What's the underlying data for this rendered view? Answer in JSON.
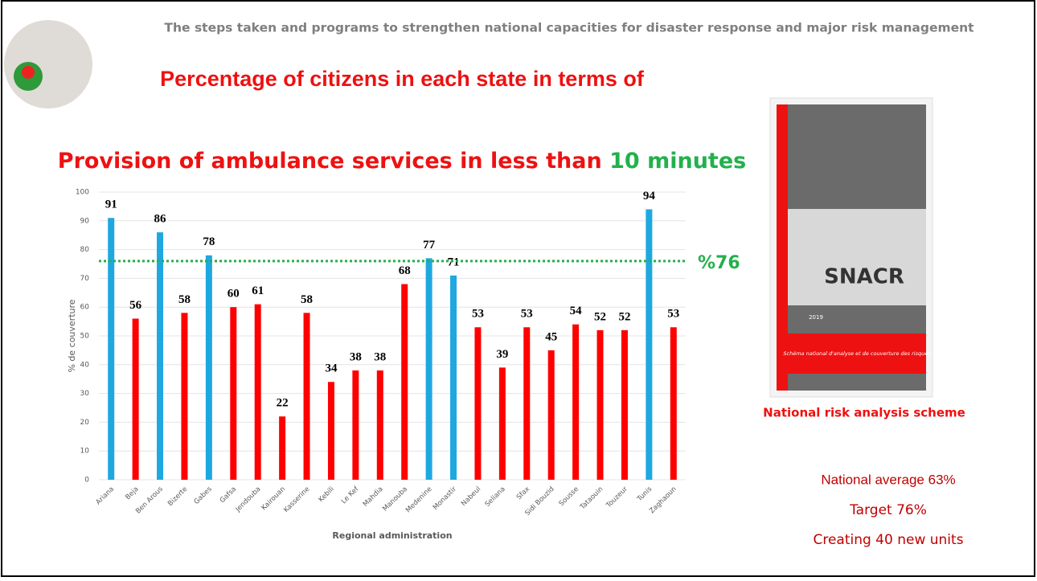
{
  "header": "The steps taken and programs to strengthen national capacities for disaster response and major risk management",
  "chart_data": {
    "type": "bar",
    "title": "Percentage of citizens in each state in terms of",
    "subtitle": "Provision of ambulance services in less than",
    "subtitle_highlight": "10 minutes",
    "categories": [
      "Ariana",
      "Beja",
      "Ben Arous",
      "Bizerte",
      "Gabes",
      "Gafsa",
      "Jendouba",
      "Kairouan",
      "Kasserine",
      "Kebili",
      "Le Kef",
      "Mahdia",
      "Manouba",
      "Medenine",
      "Monastir",
      "Nabeul",
      "Seliana",
      "Sfax",
      "Sidi Bouzid",
      "Sousse",
      "Tataouin",
      "Touzeur",
      "Tunis",
      "Zaghaoun"
    ],
    "values": [
      91,
      56,
      86,
      58,
      78,
      60,
      61,
      22,
      58,
      34,
      38,
      38,
      68,
      77,
      71,
      53,
      39,
      53,
      45,
      54,
      52,
      52,
      94,
      53
    ],
    "colors": [
      "#1ea8e0",
      "#ff0000",
      "#1ea8e0",
      "#ff0000",
      "#1ea8e0",
      "#ff0000",
      "#ff0000",
      "#ff0000",
      "#ff0000",
      "#ff0000",
      "#ff0000",
      "#ff0000",
      "#ff0000",
      "#1ea8e0",
      "#1ea8e0",
      "#ff0000",
      "#ff0000",
      "#ff0000",
      "#ff0000",
      "#ff0000",
      "#ff0000",
      "#ff0000",
      "#1ea8e0",
      "#ff0000"
    ],
    "ylim": [
      0,
      100
    ],
    "yticks": [
      0,
      10,
      20,
      30,
      40,
      50,
      60,
      70,
      80,
      90,
      100
    ],
    "grid": true,
    "reference_line": {
      "value": 76,
      "label": "%76",
      "color": "#22b14c"
    },
    "xlabel": "Regional administration",
    "ylabel": "% de couverture"
  },
  "book": {
    "title": "SNACR",
    "year": "2019",
    "subtitle": "Schéma national d'analyse et de couverture des risques"
  },
  "caption": "National risk analysis scheme",
  "notes": [
    "National average 63%",
    "Target 76%",
    "Creating 40 new units"
  ]
}
